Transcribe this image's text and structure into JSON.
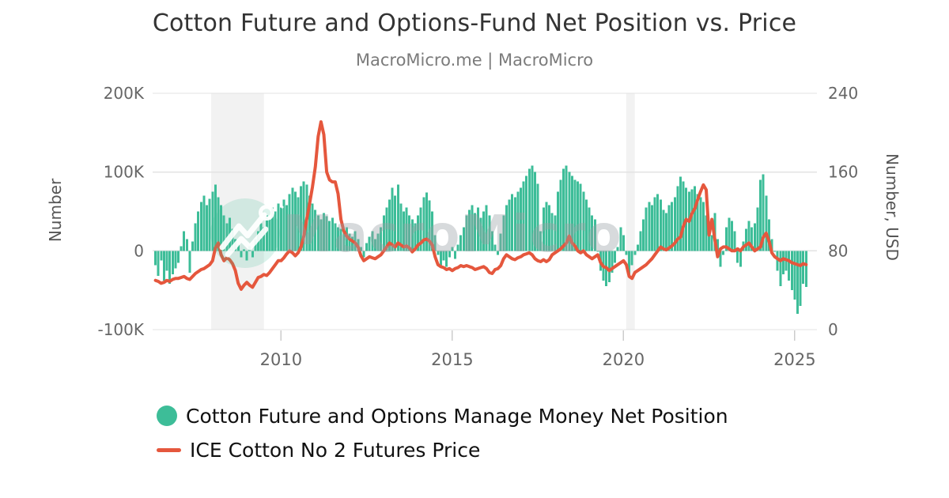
{
  "header": {
    "title": "Cotton Future and Options-Fund Net Position vs. Price",
    "subtitle": "MacroMicro.me | MacroMicro"
  },
  "watermark": {
    "text": "MacroMicro",
    "logo": "macromicro-zigzag-circle"
  },
  "colors": {
    "teal": "#3DBD98",
    "red": "#E5573D",
    "grid": "#E3E3E3",
    "recession_band": "#F2F2F2",
    "axis_text": "#666666",
    "axis_title_text": "#555555",
    "title_text": "#333333",
    "subtitle_text": "#7B7B7B",
    "legend_text": "#111111",
    "watermark_text": "#99A0A5",
    "tick_mark": "#CCCCCC"
  },
  "legend": {
    "items": [
      {
        "label": "Cotton Future and Options Manage Money Net Position",
        "marker": "circle",
        "color": "#3DBD98"
      },
      {
        "label": "ICE Cotton No 2 Futures Price",
        "marker": "line",
        "color": "#E5573D"
      }
    ]
  },
  "chart_data": {
    "type": [
      "bar",
      "line"
    ],
    "title": "Cotton Future and Options-Fund Net Position vs. Price",
    "subtitle": "MacroMicro.me | MacroMicro",
    "grid": "horizontal-only",
    "legend_position": "bottom-left",
    "x_axis": {
      "range": [
        2006.25,
        2025.65
      ],
      "tick_labels": [
        "2010",
        "2015",
        "2020",
        "2025"
      ],
      "tick_values": [
        2010,
        2015,
        2020,
        2025
      ]
    },
    "left_axis": {
      "label": "Number",
      "tick_labels": [
        "200K",
        "100K",
        "0",
        "-100K"
      ],
      "tick_values": [
        200000,
        100000,
        0,
        -100000
      ],
      "range": [
        -100000,
        200000
      ]
    },
    "right_axis": {
      "label": "Number, USD",
      "tick_labels": [
        "240",
        "160",
        "80",
        "0"
      ],
      "tick_values": [
        240,
        160,
        80,
        0
      ],
      "range": [
        0,
        240
      ]
    },
    "shaded_regions": [
      {
        "from": 2007.96,
        "to": 2009.5,
        "meaning": "recession"
      },
      {
        "from": 2020.08,
        "to": 2020.33,
        "meaning": "recession"
      }
    ],
    "series": [
      {
        "name": "Cotton Future and Options Manage Money Net Position",
        "type": "bar",
        "axis": "left",
        "color": "#3DBD98",
        "unit": "contracts",
        "value_scale": 1000,
        "x_start_year": 2006.3333,
        "x_step_years": 0.0833333,
        "values": [
          -18,
          -32,
          -12,
          -38,
          -25,
          -42,
          -30,
          -22,
          -15,
          6,
          25,
          15,
          -28,
          12,
          35,
          50,
          62,
          70,
          58,
          66,
          75,
          84,
          68,
          58,
          45,
          35,
          42,
          28,
          15,
          8,
          -8,
          2,
          -12,
          6,
          -8,
          15,
          25,
          35,
          30,
          45,
          40,
          55,
          50,
          60,
          55,
          65,
          58,
          72,
          80,
          75,
          68,
          82,
          88,
          84,
          70,
          60,
          52,
          45,
          40,
          48,
          44,
          38,
          42,
          35,
          30,
          28,
          25,
          30,
          22,
          18,
          25,
          15,
          5,
          -8,
          10,
          18,
          25,
          15,
          22,
          30,
          45,
          55,
          65,
          80,
          70,
          84,
          60,
          50,
          55,
          45,
          40,
          35,
          45,
          55,
          68,
          74,
          64,
          50,
          20,
          -5,
          -18,
          -12,
          -20,
          -8,
          5,
          -10,
          8,
          20,
          30,
          45,
          52,
          58,
          48,
          55,
          42,
          50,
          58,
          45,
          25,
          8,
          -5,
          22,
          45,
          58,
          65,
          72,
          68,
          75,
          80,
          88,
          95,
          104,
          108,
          100,
          85,
          25,
          55,
          62,
          58,
          48,
          45,
          75,
          90,
          104,
          108,
          100,
          95,
          90,
          88,
          85,
          75,
          65,
          55,
          45,
          40,
          0,
          -25,
          -38,
          -45,
          -40,
          -28,
          -15,
          5,
          30,
          20,
          -5,
          -30,
          -18,
          -5,
          8,
          25,
          40,
          55,
          62,
          58,
          68,
          72,
          65,
          52,
          48,
          58,
          62,
          68,
          82,
          94,
          88,
          80,
          75,
          78,
          82,
          72,
          68,
          62,
          45,
          30,
          20,
          48,
          15,
          -20,
          -5,
          30,
          42,
          38,
          25,
          -15,
          -20,
          12,
          28,
          38,
          30,
          35,
          55,
          90,
          97,
          70,
          40,
          15,
          0,
          -25,
          -45,
          -30,
          -25,
          -38,
          -50,
          -62,
          -80,
          -70,
          -42,
          -46
        ]
      },
      {
        "name": "ICE Cotton No 2 Futures Price",
        "type": "line",
        "axis": "right",
        "color": "#E5573D",
        "unit": "USD",
        "value_scale": 1,
        "x_start_year": 2006.3333,
        "x_step_years": 0.0833333,
        "values": [
          50,
          49,
          47,
          48,
          50,
          49,
          51,
          52,
          52,
          53,
          54,
          52,
          51,
          54,
          57,
          59,
          61,
          62,
          64,
          66,
          70,
          83,
          88,
          76,
          70,
          73,
          71,
          67,
          60,
          47,
          41,
          45,
          48,
          45,
          43,
          48,
          53,
          54,
          56,
          55,
          58,
          62,
          66,
          70,
          70,
          73,
          77,
          80,
          78,
          75,
          78,
          84,
          95,
          112,
          128,
          145,
          165,
          196,
          211,
          198,
          160,
          152,
          150,
          150,
          138,
          112,
          100,
          95,
          92,
          90,
          88,
          84,
          75,
          70,
          72,
          74,
          73,
          72,
          74,
          76,
          80,
          84,
          88,
          86,
          84,
          88,
          86,
          84,
          85,
          83,
          79,
          82,
          86,
          88,
          91,
          92,
          90,
          86,
          74,
          66,
          64,
          63,
          61,
          62,
          60,
          62,
          63,
          65,
          64,
          65,
          64,
          63,
          61,
          62,
          63,
          64,
          62,
          58,
          57,
          61,
          62,
          65,
          72,
          76,
          74,
          72,
          71,
          73,
          74,
          76,
          77,
          78,
          76,
          72,
          70,
          69,
          71,
          69,
          71,
          76,
          78,
          80,
          82,
          85,
          88,
          95,
          88,
          85,
          80,
          78,
          80,
          76,
          74,
          72,
          74,
          76,
          68,
          64,
          63,
          60,
          62,
          64,
          66,
          68,
          70,
          66,
          54,
          52,
          58,
          60,
          62,
          64,
          66,
          69,
          72,
          76,
          80,
          84,
          82,
          81,
          83,
          85,
          88,
          92,
          94,
          105,
          112,
          110,
          118,
          123,
          132,
          140,
          147,
          142,
          96,
          112,
          92,
          74,
          82,
          84,
          84,
          82,
          80,
          80,
          82,
          80,
          84,
          86,
          88,
          84,
          80,
          82,
          84,
          94,
          98,
          90,
          78,
          74,
          72,
          70,
          72,
          71,
          70,
          68,
          67,
          66,
          65,
          67,
          66
        ]
      }
    ]
  }
}
